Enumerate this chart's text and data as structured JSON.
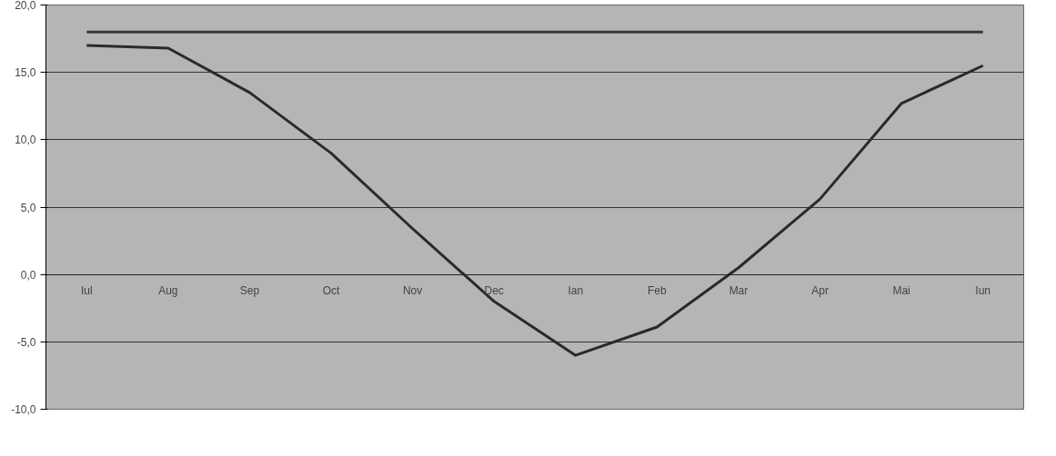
{
  "chart_data": {
    "type": "line",
    "categories": [
      "Iul",
      "Aug",
      "Sep",
      "Oct",
      "Nov",
      "Dec",
      "Ian",
      "Feb",
      "Mar",
      "Apr",
      "Mai",
      "Iun"
    ],
    "series": [
      {
        "color": "#3a3a3a",
        "values": [
          18,
          18,
          18,
          18,
          18,
          18,
          18,
          18,
          18,
          18,
          18,
          18
        ]
      },
      {
        "color": "#2a2a2a",
        "values": [
          17,
          16.8,
          13.5,
          9,
          3.4,
          -2,
          -6,
          -3.9,
          0.5,
          5.6,
          12.7,
          15.5
        ]
      }
    ],
    "ylim": [
      -10,
      20
    ],
    "yticks": [
      {
        "value": -10,
        "label": "-10,0"
      },
      {
        "value": -5,
        "label": "-5,0"
      },
      {
        "value": 0,
        "label": "0,0"
      },
      {
        "value": 5,
        "label": "5,0"
      },
      {
        "value": 10,
        "label": "10,0"
      },
      {
        "value": 15,
        "label": "15,0"
      },
      {
        "value": 20,
        "label": "20,0"
      }
    ],
    "grid": "y",
    "marker": "none",
    "line_style": "solid"
  }
}
